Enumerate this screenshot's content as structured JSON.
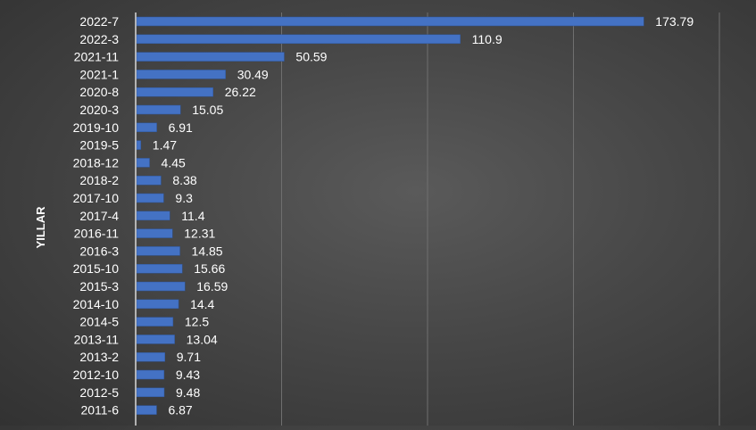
{
  "chart_data": {
    "type": "bar",
    "orientation": "horizontal",
    "ylabel": "YILLAR",
    "xlabel": "",
    "xlim": [
      0,
      200
    ],
    "grid": true,
    "bar_color": "#4472c4",
    "background_color": "#474747",
    "categories": [
      "2022-7",
      "2022-3",
      "2021-11",
      "2021-1",
      "2020-8",
      "2020-3",
      "2019-10",
      "2019-5",
      "2018-12",
      "2018-2",
      "2017-10",
      "2017-4",
      "2016-11",
      "2016-3",
      "2015-10",
      "2015-3",
      "2014-10",
      "2014-5",
      "2013-11",
      "2013-2",
      "2012-10",
      "2012-5",
      "2011-6"
    ],
    "values": [
      173.79,
      110.9,
      50.59,
      30.49,
      26.22,
      15.05,
      6.91,
      1.47,
      4.45,
      8.38,
      9.3,
      11.4,
      12.31,
      14.85,
      15.66,
      16.59,
      14.4,
      12.5,
      13.04,
      9.71,
      9.43,
      9.48,
      6.87
    ],
    "value_labels": [
      "173.79",
      "110.9",
      "50.59",
      "30.49",
      "26.22",
      "15.05",
      "6.91",
      "1.47",
      "4.45",
      "8.38",
      "9.3",
      "11.4",
      "12.31",
      "14.85",
      "15.66",
      "16.59",
      "14.4",
      "12.5",
      "13.04",
      "9.71",
      "9.43",
      "9.48",
      "6.87"
    ]
  }
}
